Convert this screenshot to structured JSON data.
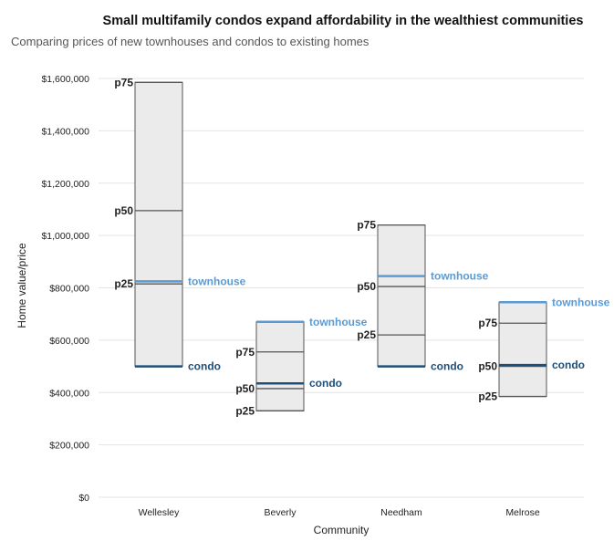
{
  "chart_data": {
    "type": "box-range",
    "title": "Small multifamily condos expand affordability in the wealthiest communities",
    "subtitle": "Comparing prices of new townhouses and condos to existing homes",
    "xlabel": "Community",
    "ylabel": "Home value/price",
    "ylim": [
      0,
      1600000
    ],
    "yticks": [
      0,
      200000,
      400000,
      600000,
      800000,
      1000000,
      1200000,
      1400000,
      1600000
    ],
    "ytick_labels": [
      "$0",
      "$200,000",
      "$400,000",
      "$600,000",
      "$800,000",
      "$1,000,000",
      "$1,200,000",
      "$1,400,000",
      "$1,600,000"
    ],
    "grid": true,
    "colors": {
      "townhouse": "#5b9bd5",
      "condo": "#1f4e79",
      "box_fill": "#ebebeb",
      "box_line": "#555555"
    },
    "percentile_labels": {
      "p25": "p25",
      "p50": "p50",
      "p75": "p75"
    },
    "annotation_labels": {
      "townhouse": "townhouse",
      "condo": "condo"
    },
    "categories": [
      "Wellesley",
      "Beverly",
      "Needham",
      "Melrose"
    ],
    "communities": [
      {
        "name": "Wellesley",
        "p25": 815000,
        "p50": 1095000,
        "p75": 1585000,
        "townhouse": 825000,
        "condo": 500000
      },
      {
        "name": "Beverly",
        "p25": 330000,
        "p50": 415000,
        "p75": 555000,
        "townhouse": 670000,
        "condo": 435000
      },
      {
        "name": "Needham",
        "p25": 620000,
        "p50": 805000,
        "p75": 1040000,
        "townhouse": 845000,
        "condo": 500000
      },
      {
        "name": "Melrose",
        "p25": 385000,
        "p50": 500000,
        "p75": 665000,
        "townhouse": 745000,
        "condo": 505000
      }
    ]
  }
}
